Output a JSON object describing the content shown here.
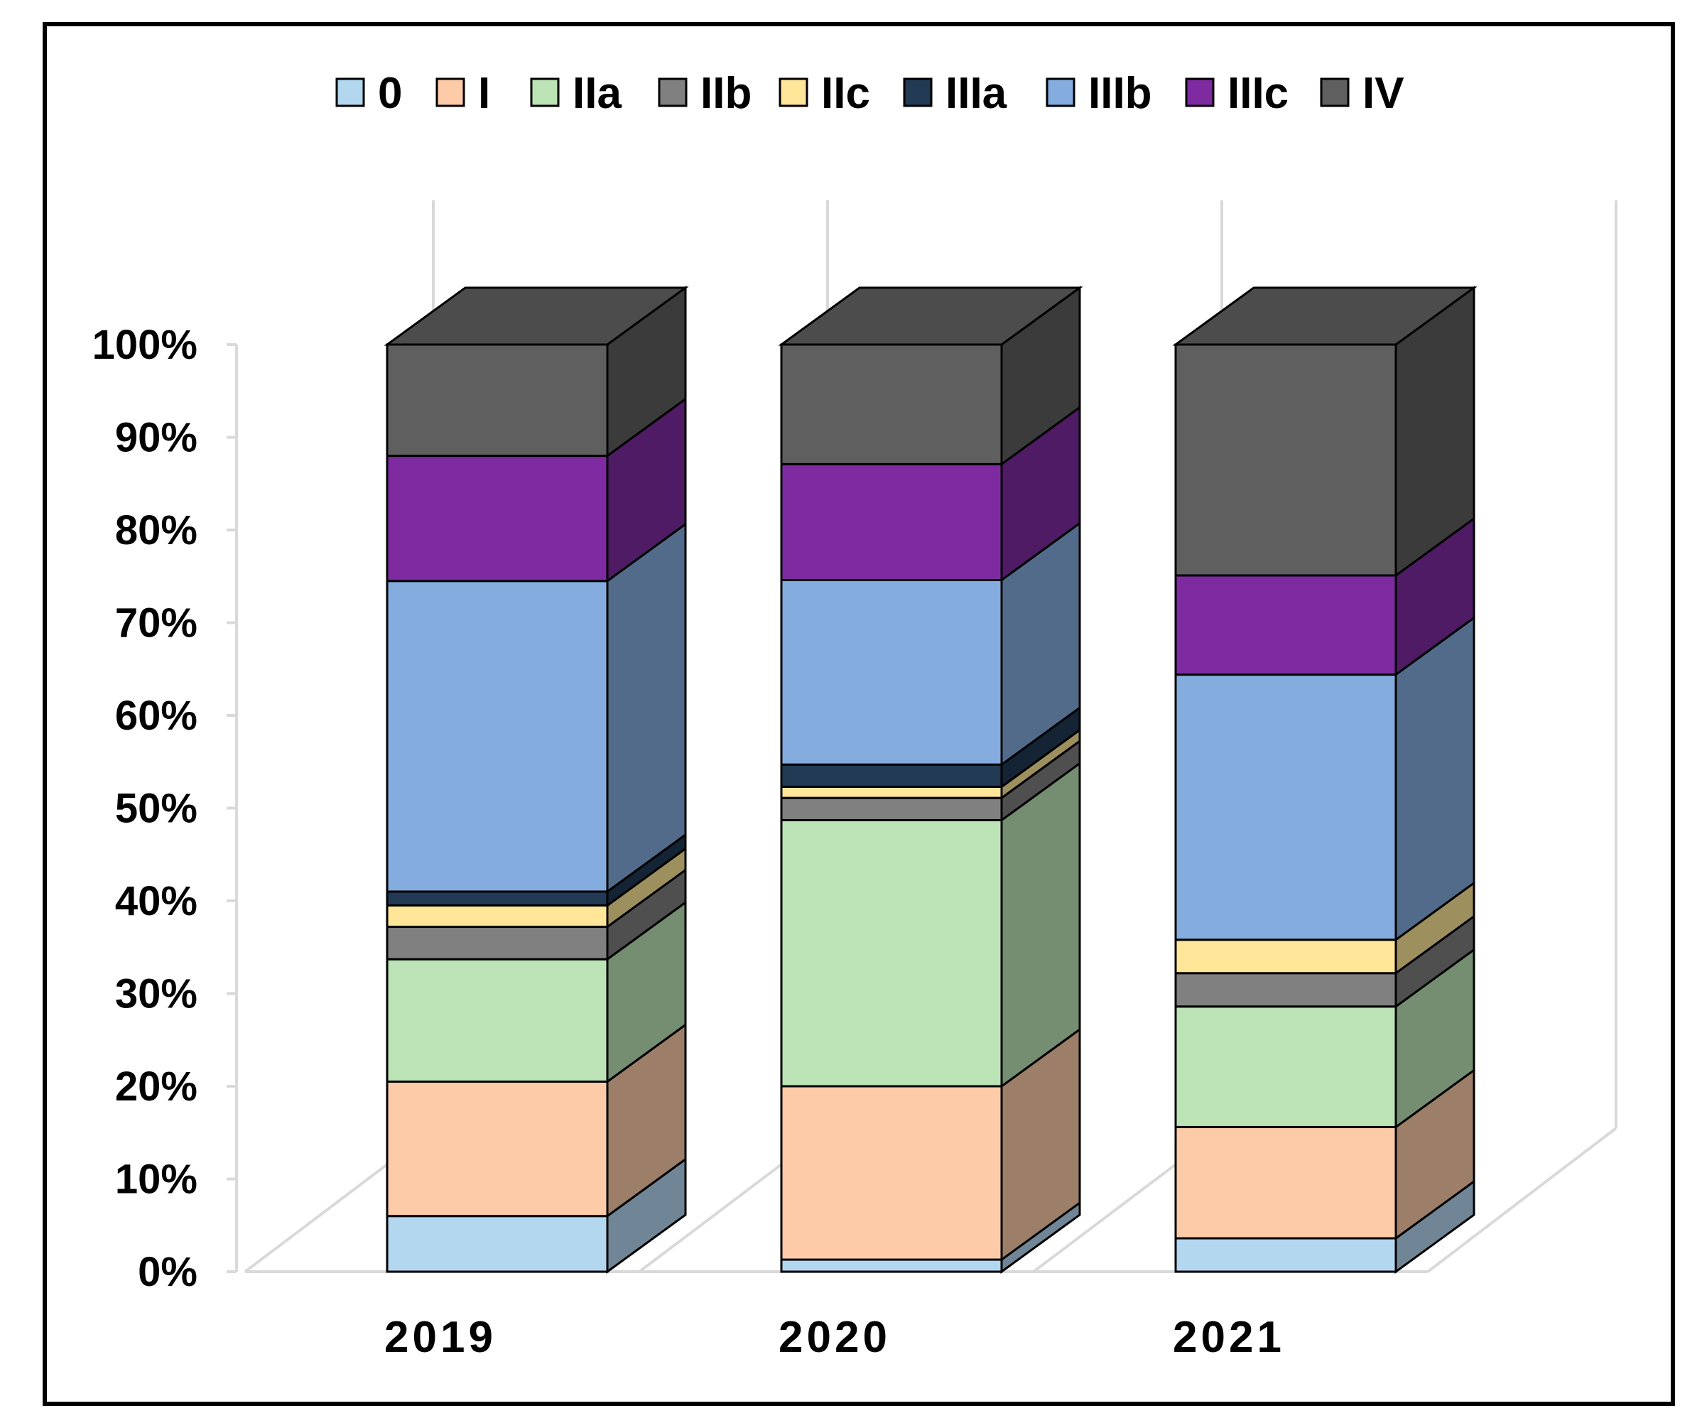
{
  "chart_data": {
    "type": "bar",
    "stacked": true,
    "percent_stacked": true,
    "three_d": true,
    "title": "",
    "xlabel": "",
    "ylabel": "",
    "ylim": [
      0,
      100
    ],
    "y_ticks": [
      "0%",
      "10%",
      "20%",
      "30%",
      "40%",
      "50%",
      "60%",
      "70%",
      "80%",
      "90%",
      "100%"
    ],
    "legend_position": "top",
    "categories": [
      "2019",
      "2020",
      "2021"
    ],
    "series": [
      {
        "name": "0",
        "color": "#B4D7F0",
        "values": [
          6,
          1.3,
          3.6
        ]
      },
      {
        "name": "I",
        "color": "#FECBA8",
        "values": [
          14.5,
          18.7,
          12
        ]
      },
      {
        "name": "IIa",
        "color": "#BCE3B5",
        "values": [
          13.2,
          28.7,
          13
        ]
      },
      {
        "name": "IIb",
        "color": "#808080",
        "values": [
          3.5,
          2.4,
          3.6
        ]
      },
      {
        "name": "IIc",
        "color": "#FFE699",
        "values": [
          2.3,
          1.2,
          3.6
        ]
      },
      {
        "name": "IIIa",
        "color": "#223A54",
        "values": [
          1.5,
          2.4,
          0
        ]
      },
      {
        "name": "IIIb",
        "color": "#85ACDF",
        "values": [
          33.5,
          19.9,
          28.6
        ]
      },
      {
        "name": "IIIc",
        "color": "#7E2BA1",
        "values": [
          13.5,
          12.5,
          10.7
        ]
      },
      {
        "name": "IV",
        "color": "#5F5F5F",
        "values": [
          12,
          12.9,
          24.9
        ]
      }
    ]
  }
}
